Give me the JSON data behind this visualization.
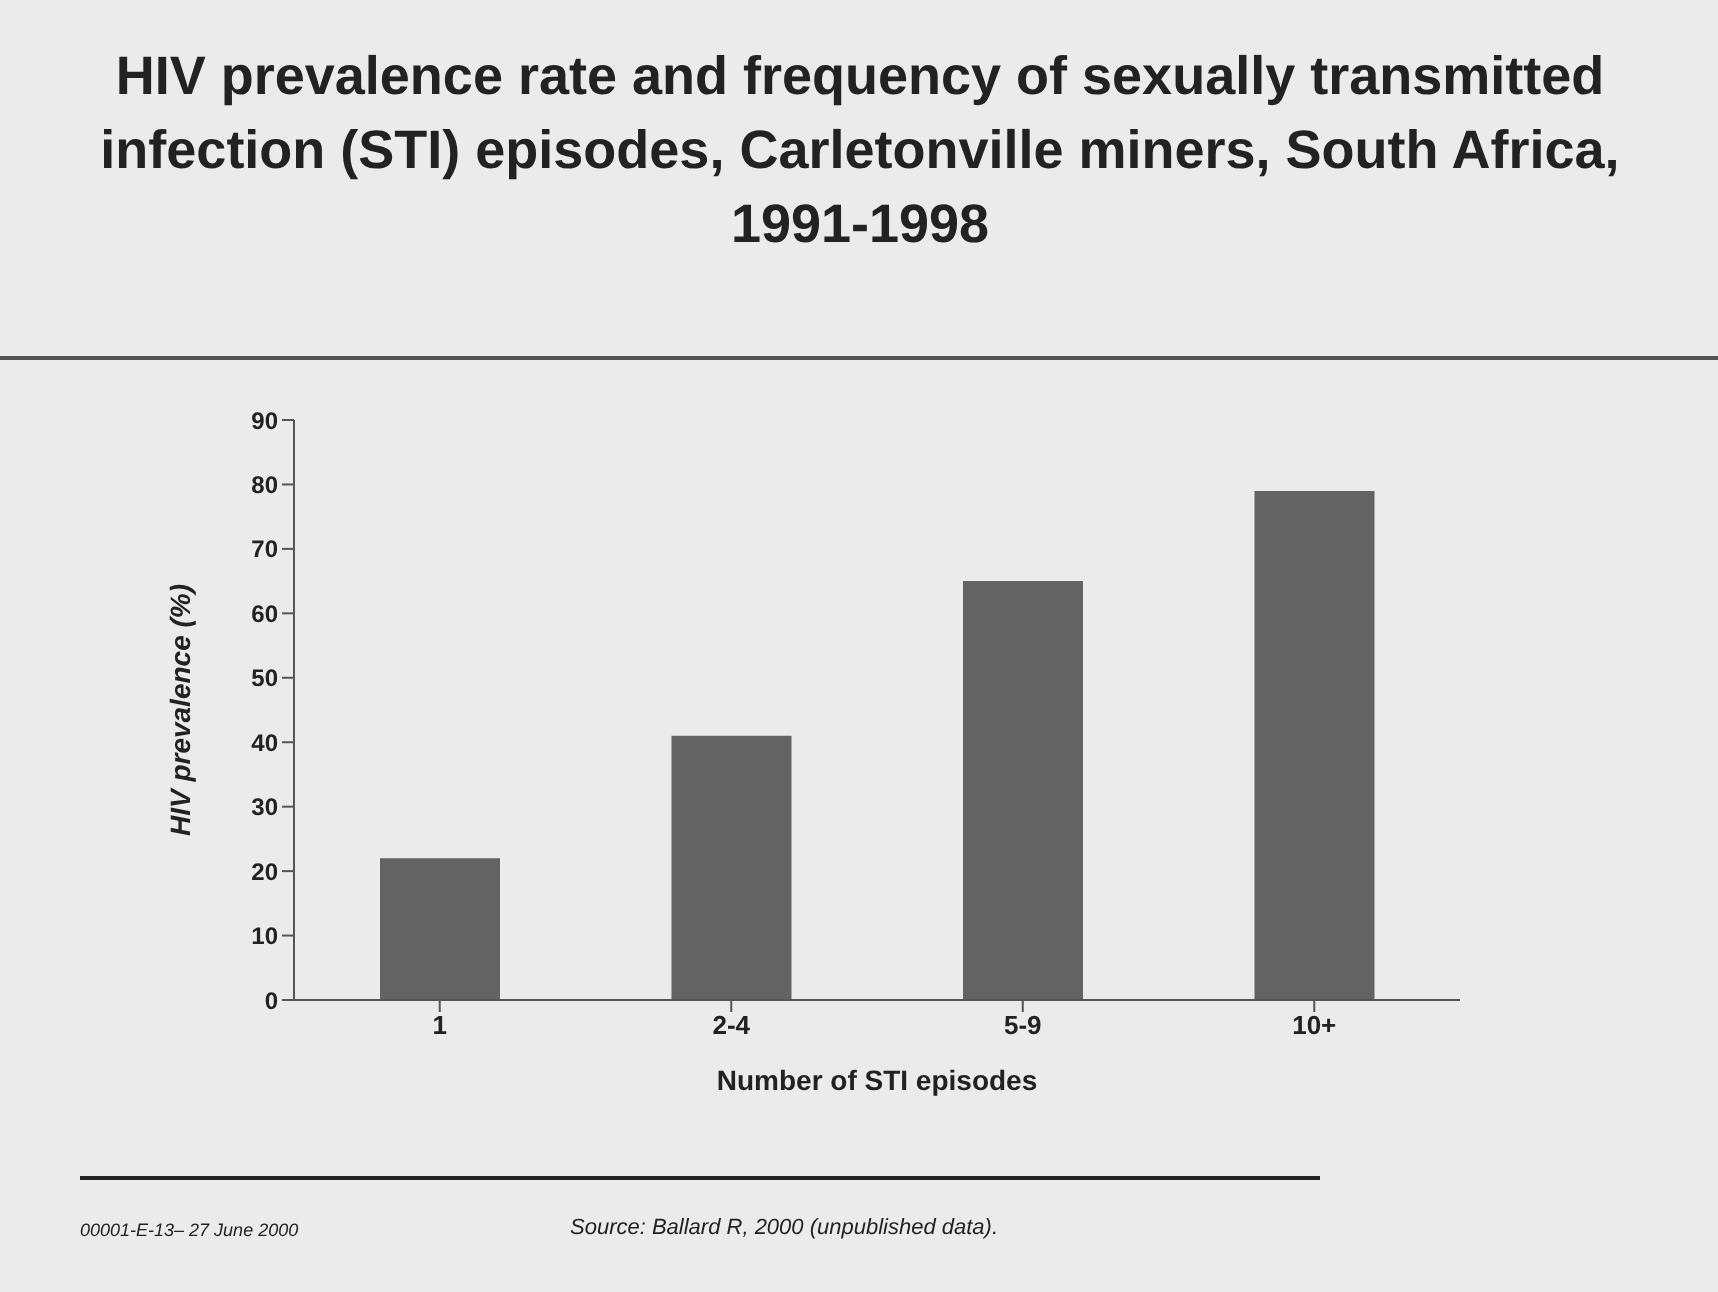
{
  "chart_data": {
    "type": "bar",
    "title": "HIV prevalence rate and frequency of sexually transmitted infection (STI) episodes, Carletonville miners, South Africa, 1991-1998",
    "xlabel": "Number of STI episodes",
    "ylabel": "HIV prevalence (%)",
    "categories": [
      "1",
      "2-4",
      "5-9",
      "10+"
    ],
    "values": [
      22,
      41,
      65,
      79
    ],
    "color": "#636363",
    "ylim": [
      0,
      90
    ],
    "yticks": [
      0,
      10,
      20,
      30,
      40,
      50,
      60,
      70,
      80,
      90
    ],
    "grid": false,
    "annotations": [
      "00001-E-13– 27 June 2000",
      "Source: Ballard R, 2000 (unpublished data)."
    ]
  }
}
